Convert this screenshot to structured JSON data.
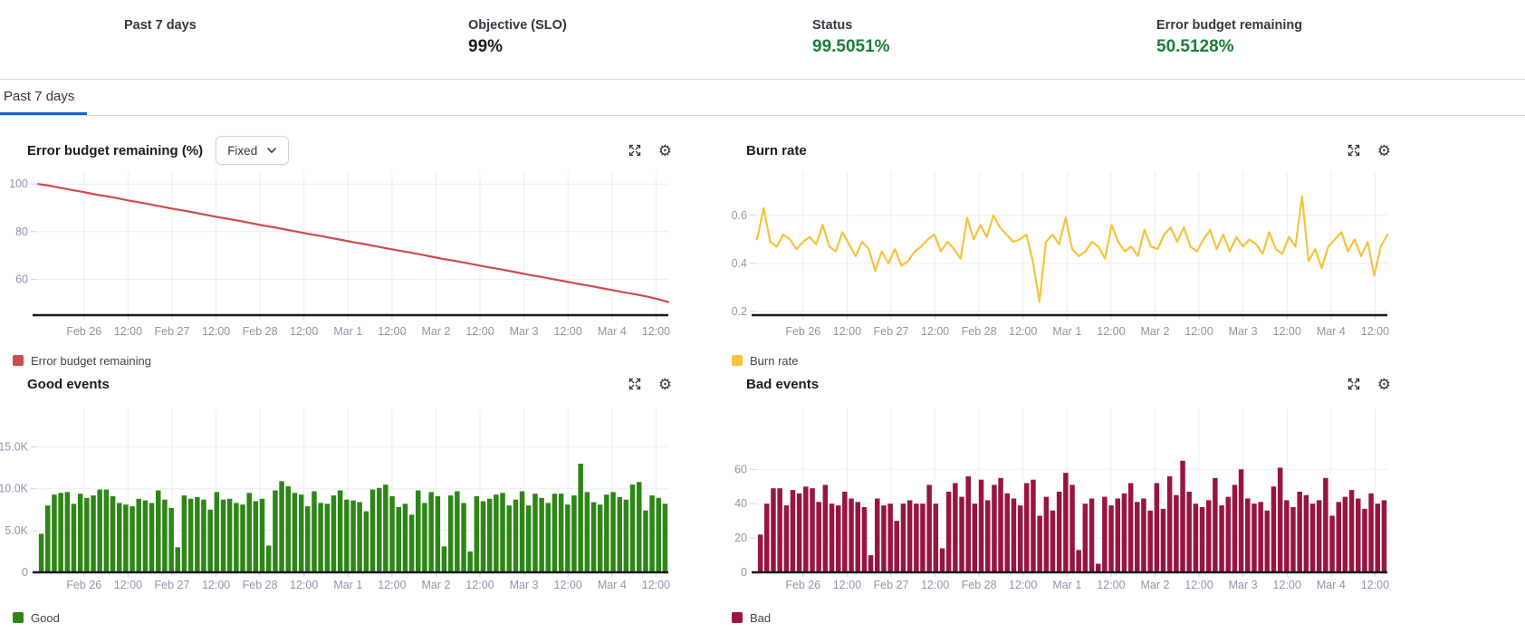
{
  "summary": {
    "items": [
      {
        "label": "Past 7 days",
        "value": ""
      },
      {
        "label": "Objective (SLO)",
        "value": "99%"
      },
      {
        "label": "Status",
        "value": "99.5051%"
      },
      {
        "label": "Error budget remaining",
        "value": "50.5128%"
      }
    ]
  },
  "tabs": [
    {
      "label": "Past 7 days",
      "selected": true
    }
  ],
  "controls": {
    "error_budget_window": "Fixed"
  },
  "colors": {
    "tab_accent_blue": "#1565c8",
    "success_green": "#1b7d34",
    "error_budget_red": "#d0494f",
    "burn_rate_yellow": "#f5c33b",
    "good_green": "#2d8616",
    "bad_maroon": "#981543",
    "axis_label_gray": "#8f95a8",
    "border_gray": "#d3dae6"
  },
  "chart_data": [
    {
      "id": "error-budget",
      "type": "line",
      "title": "Error budget remaining (%)",
      "legend": "Error budget remaining",
      "color": "#d0494f",
      "y_domain": [
        45,
        105
      ],
      "y_ticks": [
        60,
        80,
        100
      ],
      "y_tick_labels": [
        "60",
        "80",
        "100"
      ],
      "x_tick_labels": [
        "Feb 26",
        "12:00",
        "Feb 27",
        "12:00",
        "Feb 28",
        "12:00",
        "Mar 1",
        "12:00",
        "Mar 2",
        "12:00",
        "Mar 3",
        "12:00",
        "Mar 4",
        "12:00"
      ],
      "values": [
        100,
        99.3,
        98.4,
        97.5,
        96.7,
        95.7,
        94.9,
        94.1,
        93.1,
        92.3,
        91.4,
        90.5,
        89.6,
        88.8,
        87.9,
        87.0,
        86.1,
        85.3,
        84.4,
        83.5,
        82.6,
        81.8,
        80.9,
        80.0,
        79.1,
        78.3,
        77.4,
        76.5,
        75.6,
        74.8,
        73.9,
        73.0,
        72.1,
        71.3,
        70.4,
        69.5,
        68.6,
        67.8,
        66.9,
        66.0,
        65.1,
        64.3,
        63.4,
        62.5,
        61.6,
        60.8,
        59.9,
        59.0,
        58.1,
        57.3,
        56.4,
        55.5,
        54.6,
        53.8,
        52.9,
        51.8,
        50.5
      ]
    },
    {
      "id": "burn-rate",
      "type": "line",
      "title": "Burn rate",
      "legend": "Burn rate",
      "color": "#f5c33b",
      "y_domain": [
        0.185,
        0.78
      ],
      "y_ticks": [
        0.2,
        0.4,
        0.6
      ],
      "y_tick_labels": [
        "0.2",
        "0.4",
        "0.6"
      ],
      "x_tick_labels": [
        "Feb 26",
        "12:00",
        "Feb 27",
        "12:00",
        "Feb 28",
        "12:00",
        "Mar 1",
        "12:00",
        "Mar 2",
        "12:00",
        "Mar 3",
        "12:00",
        "Mar 4",
        "12:00"
      ],
      "values": [
        0.5,
        0.63,
        0.49,
        0.47,
        0.52,
        0.5,
        0.46,
        0.49,
        0.51,
        0.48,
        0.56,
        0.47,
        0.45,
        0.53,
        0.48,
        0.43,
        0.49,
        0.46,
        0.37,
        0.45,
        0.4,
        0.46,
        0.39,
        0.41,
        0.45,
        0.47,
        0.5,
        0.52,
        0.45,
        0.49,
        0.46,
        0.42,
        0.59,
        0.5,
        0.56,
        0.51,
        0.6,
        0.55,
        0.52,
        0.49,
        0.5,
        0.52,
        0.41,
        0.24,
        0.49,
        0.52,
        0.48,
        0.59,
        0.46,
        0.43,
        0.45,
        0.49,
        0.47,
        0.42,
        0.56,
        0.49,
        0.45,
        0.47,
        0.43,
        0.54,
        0.47,
        0.46,
        0.52,
        0.55,
        0.49,
        0.55,
        0.47,
        0.45,
        0.5,
        0.54,
        0.46,
        0.52,
        0.45,
        0.51,
        0.47,
        0.5,
        0.48,
        0.44,
        0.53,
        0.46,
        0.44,
        0.51,
        0.47,
        0.68,
        0.41,
        0.46,
        0.38,
        0.47,
        0.5,
        0.53,
        0.45,
        0.5,
        0.43,
        0.49,
        0.35,
        0.47,
        0.52
      ]
    },
    {
      "id": "good-events",
      "type": "bar",
      "title": "Good events",
      "legend": "Good",
      "color": "#2d8616",
      "y_domain": [
        0,
        19500
      ],
      "y_ticks": [
        5000,
        10000,
        15000
      ],
      "y_tick_labels": [
        "5.0K",
        "10.0K",
        "15.0K"
      ],
      "zero_label": "0",
      "x_tick_labels": [
        "Feb 26",
        "12:00",
        "Feb 27",
        "12:00",
        "Feb 28",
        "12:00",
        "Mar 1",
        "12:00",
        "Mar 2",
        "12:00",
        "Mar 3",
        "12:00",
        "Mar 4",
        "12:00"
      ],
      "values": [
        4600,
        8000,
        9300,
        9500,
        9600,
        8200,
        9400,
        8900,
        9200,
        9900,
        9900,
        9100,
        8300,
        8100,
        7900,
        8800,
        8600,
        8300,
        9800,
        8700,
        7700,
        3000,
        9200,
        8800,
        9000,
        8700,
        7500,
        9600,
        8700,
        8800,
        8300,
        8100,
        9500,
        8500,
        8800,
        3200,
        9800,
        10900,
        10300,
        9500,
        9300,
        7900,
        9700,
        8300,
        8200,
        9200,
        9800,
        8700,
        8600,
        8400,
        7300,
        9900,
        10100,
        10500,
        9100,
        7800,
        8200,
        6900,
        9800,
        8300,
        9600,
        9100,
        3100,
        9200,
        9700,
        8300,
        2500,
        9100,
        8500,
        8800,
        9300,
        9500,
        8000,
        8700,
        9700,
        8000,
        9400,
        8900,
        8300,
        9400,
        9400,
        8100,
        9200,
        13000,
        9600,
        8400,
        8100,
        9300,
        9600,
        9000,
        8700,
        10500,
        10800,
        7400,
        9200,
        8900,
        8200
      ]
    },
    {
      "id": "bad-events",
      "type": "bar",
      "title": "Bad events",
      "legend": "Bad",
      "color": "#981543",
      "y_domain": [
        0,
        95
      ],
      "y_ticks": [
        20,
        40,
        60
      ],
      "y_tick_labels": [
        "20",
        "40",
        "60"
      ],
      "zero_label": "0",
      "x_tick_labels": [
        "Feb 26",
        "12:00",
        "Feb 27",
        "12:00",
        "Feb 28",
        "12:00",
        "Mar 1",
        "12:00",
        "Mar 2",
        "12:00",
        "Mar 3",
        "12:00",
        "Mar 4",
        "12:00"
      ],
      "values": [
        22,
        40,
        49,
        49,
        39,
        48,
        46,
        50,
        49,
        41,
        51,
        40,
        39,
        47,
        43,
        41,
        38,
        10,
        43,
        39,
        40,
        30,
        40,
        42,
        40,
        40,
        51,
        40,
        14,
        47,
        52,
        44,
        56,
        40,
        54,
        42,
        51,
        55,
        46,
        43,
        39,
        52,
        54,
        33,
        44,
        36,
        47,
        58,
        51,
        13,
        40,
        43,
        5,
        44,
        39,
        43,
        46,
        52,
        41,
        43,
        36,
        52,
        37,
        56,
        45,
        65,
        47,
        40,
        38,
        42,
        55,
        39,
        44,
        51,
        60,
        43,
        40,
        41,
        36,
        50,
        61,
        42,
        38,
        47,
        45,
        40,
        42,
        55,
        33,
        41,
        44,
        48,
        43,
        37,
        46,
        40,
        42
      ]
    }
  ]
}
